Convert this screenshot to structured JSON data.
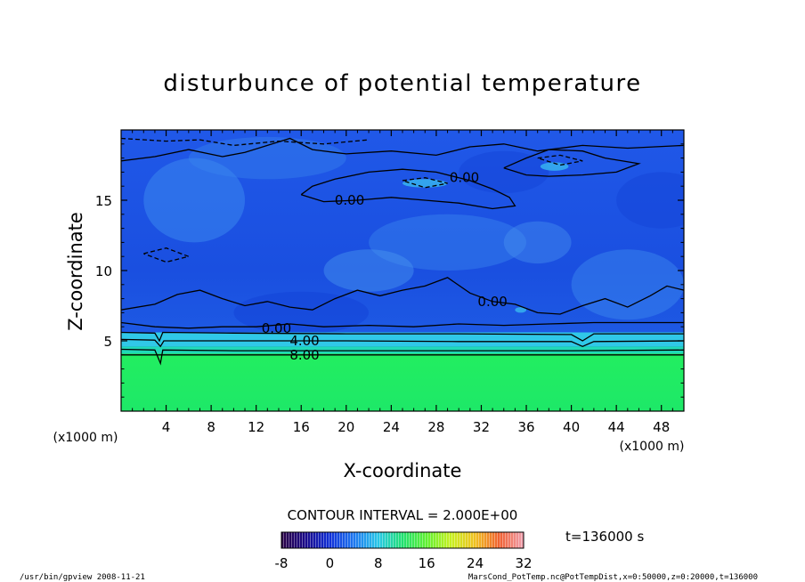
{
  "chart_data": {
    "type": "heatmap",
    "title": "disturbunce of potential temperature",
    "xlabel": "X-coordinate",
    "ylabel": "Z-coordinate",
    "x_unit_left": "(x1000 m)",
    "x_unit_right": "(x1000 m)",
    "xlim": [
      0,
      50
    ],
    "ylim": [
      0,
      20
    ],
    "x_ticks": [
      4,
      8,
      12,
      16,
      20,
      24,
      28,
      32,
      36,
      40,
      44,
      48
    ],
    "y_ticks": [
      5,
      10,
      15
    ],
    "contour_labels": [
      {
        "text": "0.00",
        "x": 30.5,
        "z": 16.6
      },
      {
        "text": "0.00",
        "x": 20.3,
        "z": 15.0
      },
      {
        "text": "0.00",
        "x": 33.0,
        "z": 7.8
      },
      {
        "text": "0.00",
        "x": 13.8,
        "z": 5.9
      },
      {
        "text": "4.00",
        "x": 16.3,
        "z": 5.0
      },
      {
        "text": "8.00",
        "x": 16.3,
        "z": 4.0
      }
    ],
    "contour_interval": "CONTOUR INTERVAL = 2.000E+00",
    "time_label": "t=136000 s",
    "colorbar": {
      "min": -8,
      "max": 32,
      "ticks": [
        "-8",
        "0",
        "8",
        "16",
        "24",
        "32"
      ]
    },
    "field_summary": {
      "lower_layer_top_z": 4.0,
      "lower_layer_value": 12,
      "upper_layer_value": 0
    }
  },
  "footer": {
    "left": "/usr/bin/gpview   2008-11-21",
    "right": "MarsCond_PotTemp.nc@PotTempDist,x=0:50000,z=0:20000,t=136000"
  }
}
